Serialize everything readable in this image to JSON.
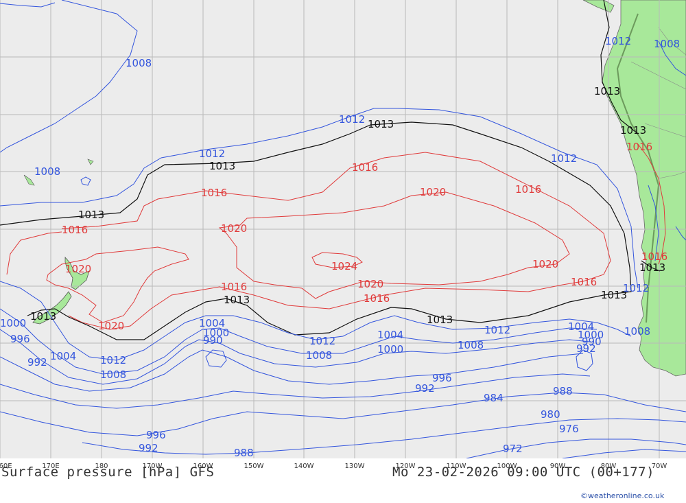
{
  "title": "Surface pressure [hPa] GFS",
  "datetime": "Mo 23-02-2026 09:00 UTC (00+177)",
  "credit": "©weatheronline.co.uk",
  "colors": {
    "ocean": "#ececec",
    "land": "#a8e89a",
    "grid": "#b9b9b9",
    "low": "#3355dd",
    "normal": "#111111",
    "high": "#e03a3a",
    "border": "#888888"
  },
  "lon_labels": [
    "60E",
    "170E",
    "180",
    "170W",
    "160W",
    "150W",
    "140W",
    "130W",
    "120W",
    "110W",
    "100W",
    "90W",
    "80W",
    "70W"
  ],
  "isobar_labels": {
    "l1008a": "1008",
    "l1008b": "1008",
    "l1012a": "1012",
    "l1012b": "1012",
    "l1013a": "1013",
    "l1013b": "1013",
    "l1013c": "1013",
    "l1013d": "1013",
    "l1013e": "1013",
    "l1013f": "1013",
    "l1013g": "1013",
    "l1013h": "1013",
    "l1016a": "1016",
    "l1016b": "1016",
    "l1016c": "1016",
    "l1016d": "1016",
    "l1016e": "1016",
    "l1016f": "1016",
    "l1016g": "1016",
    "l1020a": "1020",
    "l1020b": "1020",
    "l1020c": "1020",
    "l1020d": "1020",
    "l1020e": "1020",
    "l1020f": "1020",
    "l1024": "1024",
    "l1012c": "1012",
    "l1012d": "1012",
    "l1012e": "1012",
    "l1012f": "1012",
    "l1000a": "1000",
    "l996a": "996",
    "l992a": "992",
    "l1004a": "1004",
    "l1012g": "1012",
    "l1008c": "1008",
    "l1004b": "1004",
    "l1000b": "1000",
    "l990a": "990",
    "l1004c": "1004",
    "l1000c": "1000",
    "l1008d": "1008",
    "l1004d": "1004",
    "l1000d": "1000",
    "l990b": "990",
    "l992b": "992",
    "l1008e": "1008",
    "l1008f": "1008",
    "l996b": "996",
    "l992c": "992",
    "l984": "984",
    "l988a": "988",
    "l980": "980",
    "l976": "976",
    "l996c": "996",
    "l992d": "992",
    "l988b": "988",
    "l972": "972",
    "l1012h": "1012",
    "l1008g": "1008"
  }
}
